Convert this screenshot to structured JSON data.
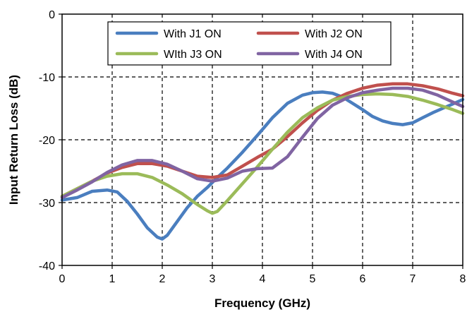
{
  "chart_data": {
    "type": "line",
    "xlabel": "Frequency (GHz)",
    "ylabel": "Input Return Loss (dB)",
    "xlim": [
      0,
      8
    ],
    "ylim": [
      -40,
      0
    ],
    "xticks": [
      "0",
      "1",
      "2",
      "3",
      "4",
      "5",
      "6",
      "7",
      "8"
    ],
    "yticks": [
      "0",
      "-10",
      "-20",
      "-30",
      "-40"
    ],
    "grid": "dashed",
    "legend_position": "top",
    "series": [
      {
        "name": "With J1 ON",
        "color": "#4a7ebf",
        "x": [
          0,
          0.3,
          0.6,
          0.9,
          1.1,
          1.3,
          1.5,
          1.7,
          1.9,
          2.0,
          2.1,
          2.3,
          2.5,
          2.7,
          2.9,
          3.1,
          3.3,
          3.6,
          3.9,
          4.2,
          4.5,
          4.8,
          5.0,
          5.2,
          5.4,
          5.6,
          5.8,
          6.0,
          6.2,
          6.4,
          6.6,
          6.8,
          7.0,
          7.2,
          7.4,
          7.6,
          7.8,
          8.0
        ],
        "values": [
          -29.6,
          -29.2,
          -28.2,
          -28.0,
          -28.3,
          -29.8,
          -31.8,
          -34.0,
          -35.5,
          -35.8,
          -35.2,
          -33.0,
          -30.8,
          -29.0,
          -27.6,
          -26.0,
          -24.5,
          -22.0,
          -19.3,
          -16.5,
          -14.2,
          -12.9,
          -12.5,
          -12.4,
          -12.6,
          -13.2,
          -14.2,
          -15.2,
          -16.3,
          -17.0,
          -17.4,
          -17.6,
          -17.3,
          -16.5,
          -15.7,
          -15.0,
          -14.3,
          -13.6
        ]
      },
      {
        "name": "With J2 ON",
        "color": "#c0504d",
        "x": [
          0,
          0.3,
          0.6,
          0.9,
          1.2,
          1.5,
          1.8,
          2.1,
          2.4,
          2.7,
          3.0,
          3.3,
          3.6,
          3.9,
          4.2,
          4.5,
          4.8,
          5.1,
          5.4,
          5.7,
          6.0,
          6.3,
          6.6,
          6.9,
          7.2,
          7.5,
          7.8,
          8.0
        ],
        "values": [
          -29.0,
          -27.8,
          -26.6,
          -25.3,
          -24.4,
          -23.8,
          -23.8,
          -24.2,
          -25.0,
          -25.8,
          -26.0,
          -25.6,
          -24.2,
          -22.8,
          -21.5,
          -19.5,
          -17.3,
          -15.3,
          -13.7,
          -12.6,
          -11.8,
          -11.3,
          -11.1,
          -11.1,
          -11.4,
          -11.9,
          -12.6,
          -13.0
        ]
      },
      {
        "name": "WIth J3 ON",
        "color": "#9bbb59",
        "x": [
          0,
          0.3,
          0.6,
          0.9,
          1.2,
          1.5,
          1.8,
          2.1,
          2.4,
          2.7,
          2.9,
          3.0,
          3.1,
          3.3,
          3.6,
          3.9,
          4.2,
          4.5,
          4.8,
          5.1,
          5.4,
          5.7,
          6.0,
          6.3,
          6.6,
          6.9,
          7.2,
          7.5,
          7.8,
          8.0
        ],
        "values": [
          -29.0,
          -27.8,
          -26.6,
          -25.8,
          -25.4,
          -25.4,
          -26.0,
          -27.2,
          -28.6,
          -30.3,
          -31.3,
          -31.7,
          -31.4,
          -29.7,
          -27.0,
          -24.3,
          -21.5,
          -18.8,
          -16.5,
          -14.9,
          -13.7,
          -13.1,
          -12.8,
          -12.7,
          -12.8,
          -13.1,
          -13.7,
          -14.4,
          -15.2,
          -15.8
        ]
      },
      {
        "name": "With J4 ON",
        "color": "#8064a2",
        "x": [
          0,
          0.3,
          0.6,
          0.9,
          1.2,
          1.5,
          1.8,
          2.1,
          2.4,
          2.7,
          3.0,
          3.3,
          3.6,
          3.9,
          4.2,
          4.5,
          4.8,
          5.1,
          5.4,
          5.7,
          6.0,
          6.3,
          6.6,
          6.9,
          7.2,
          7.5,
          7.8,
          8.0
        ],
        "values": [
          -29.2,
          -28.0,
          -26.7,
          -25.2,
          -24.0,
          -23.3,
          -23.3,
          -23.9,
          -25.0,
          -26.2,
          -26.6,
          -26.1,
          -25.0,
          -24.6,
          -24.5,
          -22.7,
          -19.6,
          -16.6,
          -14.5,
          -13.3,
          -12.5,
          -12.1,
          -11.8,
          -11.8,
          -12.1,
          -12.9,
          -14.0,
          -14.7
        ]
      }
    ]
  }
}
